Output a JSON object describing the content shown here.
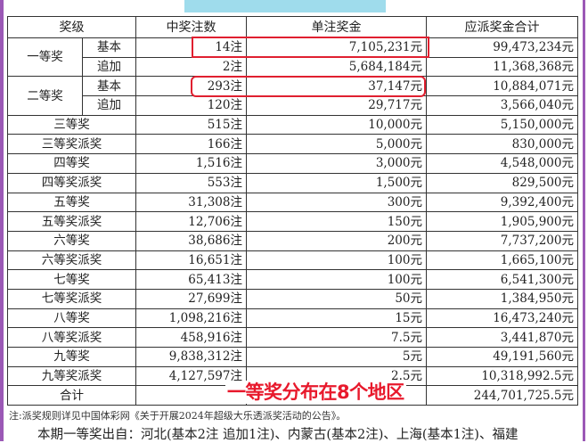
{
  "header": [
    "奖级",
    "中奖注数",
    "单注奖金",
    "应派奖金合计"
  ],
  "split_rows": [
    {
      "level": "一等奖",
      "sub": [
        {
          "type": "基本",
          "count": "14注",
          "prize": "7,105,231元",
          "total": "99,473,234元"
        },
        {
          "type": "追加",
          "count": "2注",
          "prize": "5,684,184元",
          "total": "11,368,368元"
        }
      ]
    },
    {
      "level": "二等奖",
      "sub": [
        {
          "type": "基本",
          "count": "293注",
          "prize": "37,147元",
          "total": "10,884,071元"
        },
        {
          "type": "追加",
          "count": "120注",
          "prize": "29,717元",
          "total": "3,566,040元"
        }
      ]
    }
  ],
  "rows": [
    {
      "level": "三等奖",
      "count": "515注",
      "prize": "10,000元",
      "total": "5,150,000元"
    },
    {
      "level": "三等奖派奖",
      "count": "166注",
      "prize": "5,000元",
      "total": "830,000元"
    },
    {
      "level": "四等奖",
      "count": "1,516注",
      "prize": "3,000元",
      "total": "4,548,000元"
    },
    {
      "level": "四等奖派奖",
      "count": "553注",
      "prize": "1,500元",
      "total": "829,500元"
    },
    {
      "level": "五等奖",
      "count": "31,308注",
      "prize": "300元",
      "total": "9,392,400元"
    },
    {
      "level": "五等奖派奖",
      "count": "12,706注",
      "prize": "150元",
      "total": "1,905,900元"
    },
    {
      "level": "六等奖",
      "count": "38,686注",
      "prize": "200元",
      "total": "7,737,200元"
    },
    {
      "level": "六等奖派奖",
      "count": "16,651注",
      "prize": "100元",
      "total": "1,665,100元"
    },
    {
      "level": "七等奖",
      "count": "65,413注",
      "prize": "100元",
      "total": "6,541,300元"
    },
    {
      "level": "七等奖派奖",
      "count": "27,699注",
      "prize": "50元",
      "total": "1,384,950元"
    },
    {
      "level": "八等奖",
      "count": "1,098,216注",
      "prize": "15元",
      "total": "16,473,240元"
    },
    {
      "level": "八等奖派奖",
      "count": "458,916注",
      "prize": "7.5元",
      "total": "3,441,870元"
    },
    {
      "level": "九等奖",
      "count": "9,838,312注",
      "prize": "5元",
      "total": "49,191,560元"
    },
    {
      "level": "九等奖派奖",
      "count": "4,127,597注",
      "prize": "2.5元",
      "total": "10,318,992.5元"
    }
  ],
  "total_row": {
    "label": "合计",
    "count": "",
    "prize": "",
    "total": "244,701,725.5元"
  },
  "overlay_caption": "一等奖分布在8个地区",
  "note": "注:派奖规则详见中国体彩网《关于开展2024年超级大乐透派奖活动的公告》。",
  "winners_info": "本期一等奖出自：河北(基本2注 追加1注)、内蒙古(基本2注)、上海(基本1注)、福建",
  "colors": {
    "highlight": "#e02030",
    "frame": "#9b59b6",
    "banner": "#9fdcec"
  }
}
